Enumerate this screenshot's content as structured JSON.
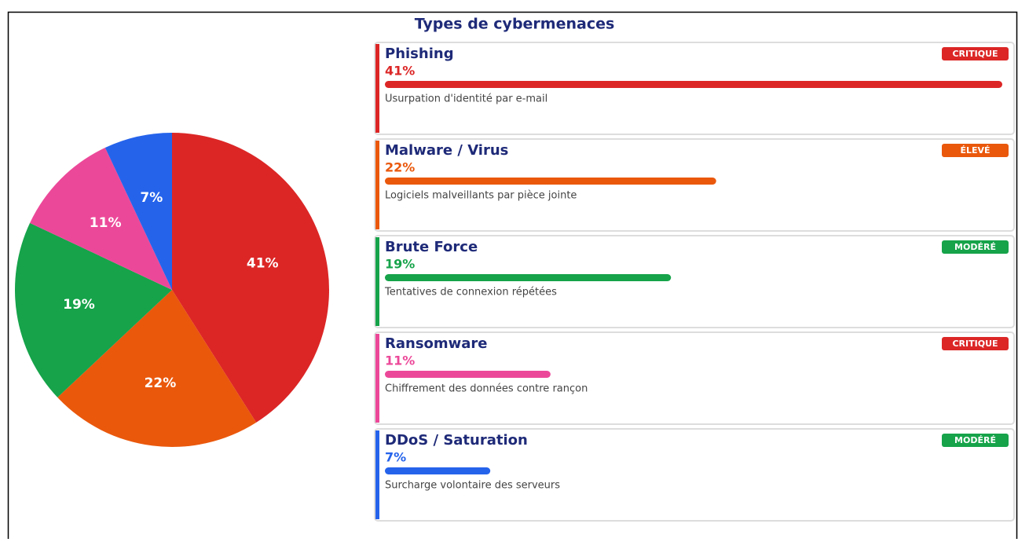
{
  "chart_data": {
    "type": "pie",
    "title": "Types de cybermenaces",
    "categories": [
      "Phishing",
      "Malware / Virus",
      "Brute Force",
      "Ransomware",
      "DDoS / Saturation"
    ],
    "values": [
      41,
      22,
      19,
      11,
      7
    ],
    "value_labels": [
      "41%",
      "22%",
      "19%",
      "11%",
      "7%"
    ],
    "colors": [
      "#dc2626",
      "#ea580c",
      "#16a34a",
      "#ec4899",
      "#2563eb"
    ],
    "descriptions": [
      "Usurpation d'identité par e-mail",
      "Logiciels malveillants par pièce jointe",
      "Tentatives de connexion répétées",
      "Chiffrement des données contre rançon",
      "Surcharge volontaire des serveurs"
    ],
    "badges": [
      "CRITIQUE",
      "ÉLEVÉ",
      "MODÉRÉ",
      "CRITIQUE",
      "MODÉRÉ"
    ],
    "badge_colors": [
      "#dc2626",
      "#ea580c",
      "#16a34a",
      "#dc2626",
      "#16a34a"
    ]
  }
}
